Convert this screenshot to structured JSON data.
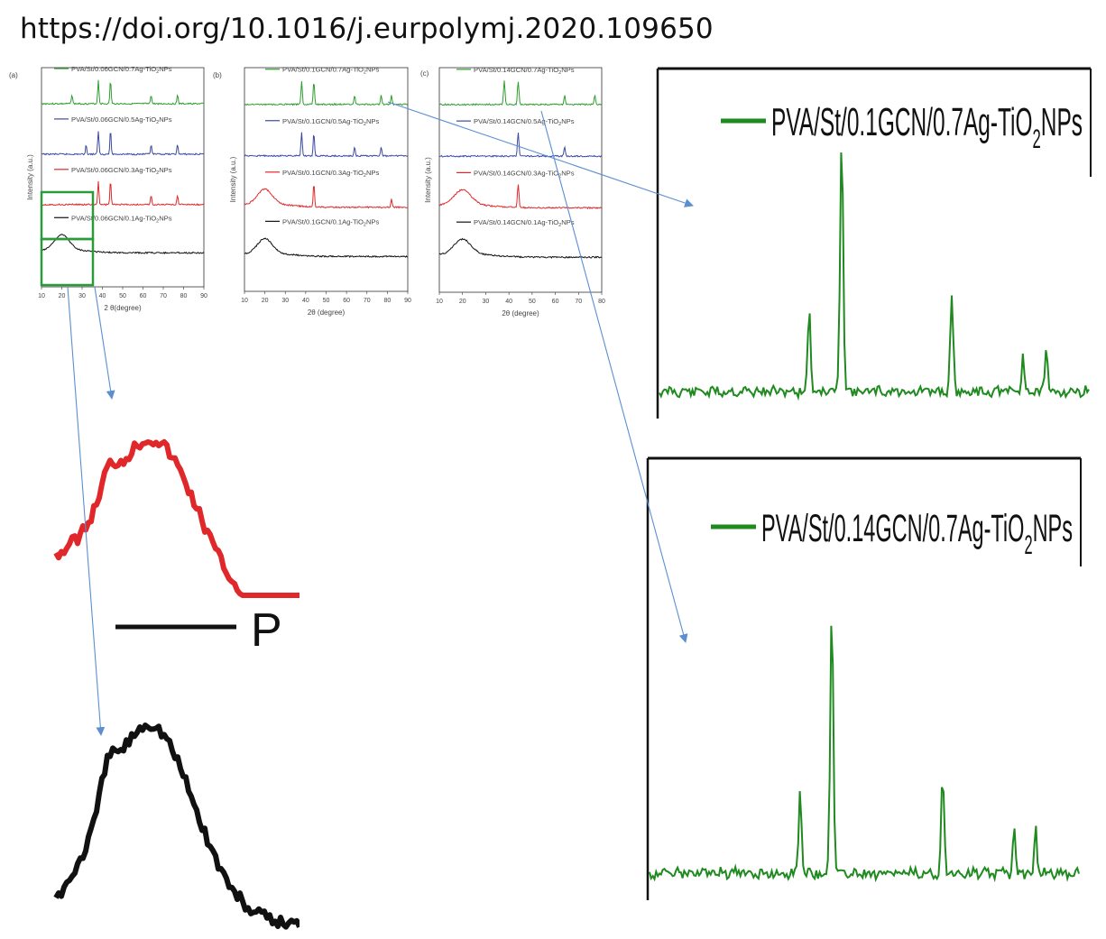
{
  "header": {
    "doi": "https://doi.org/10.1016/j.eurpolymj.2020.109650"
  },
  "colors": {
    "green": "#2e9e2e",
    "blue": "#3b4aa0",
    "red": "#e0282a",
    "black": "#111111",
    "zoom_green": "#1f8a1f",
    "arrow": "#5b8fd0",
    "box": "#2a9a3a"
  },
  "chart_data": [
    {
      "type": "line",
      "panel": "(a)",
      "xlabel": "2 θ(degree)",
      "ylabel": "Intensity (a.u.)",
      "xlim": [
        10,
        90
      ],
      "x_ticks": [
        "10",
        "20",
        "30",
        "40",
        "50",
        "60",
        "70",
        "80",
        "90"
      ],
      "series": [
        {
          "name": "PVA/St/0.06GCN/0.7Ag-TiO",
          "color": "#2e9e2e",
          "peaks": [
            25,
            38,
            44,
            64,
            77
          ]
        },
        {
          "name": "PVA/St/0.06GCN/0.5Ag-TiO",
          "color": "#3b4aa0",
          "peaks": [
            32,
            38,
            44,
            64,
            77
          ]
        },
        {
          "name": "PVA/St/0.06GCN/0.3Ag-TiO",
          "color": "#e0282a",
          "peaks": [
            20,
            38,
            44,
            64,
            77
          ]
        },
        {
          "name": "PVA/St/0.06GCN/0.1Ag-TiO",
          "color": "#111111",
          "peaks": [
            20
          ]
        }
      ]
    },
    {
      "type": "line",
      "panel": "(b)",
      "xlabel": "2θ (degree)",
      "ylabel": "Intensity (a.u.)",
      "xlim": [
        10,
        90
      ],
      "x_ticks": [
        "10",
        "20",
        "30",
        "40",
        "50",
        "60",
        "70",
        "80",
        "90"
      ],
      "series": [
        {
          "name": "PVA/St/0.1GCN/0.7Ag-TiO",
          "color": "#2e9e2e",
          "peaks": [
            38,
            44,
            64,
            77,
            82
          ]
        },
        {
          "name": "PVA/St/0.1GCN/0.5Ag-TiO",
          "color": "#3b4aa0",
          "peaks": [
            38,
            44,
            64,
            77
          ]
        },
        {
          "name": "PVA/St/0.1GCN/0.3Ag-TiO",
          "color": "#e0282a",
          "peaks": [
            20,
            44,
            82
          ]
        },
        {
          "name": "PVA/St/0.1GCN/0.1Ag-TiO",
          "color": "#111111",
          "peaks": [
            20
          ]
        }
      ]
    },
    {
      "type": "line",
      "panel": "(c)",
      "xlabel": "2θ (degree)",
      "ylabel": "Intensity (a.u.)",
      "xlim": [
        10,
        80
      ],
      "x_ticks": [
        "10",
        "20",
        "30",
        "40",
        "50",
        "60",
        "70",
        "80"
      ],
      "series": [
        {
          "name": "PVA/St/0.14GCN/0.7Ag-TiO",
          "color": "#2e9e2e",
          "peaks": [
            38,
            44,
            64,
            77
          ]
        },
        {
          "name": "PVA/St/0.14GCN/0.5Ag-TiO",
          "color": "#3b4aa0",
          "peaks": [
            44,
            64
          ]
        },
        {
          "name": "PVA/St/0.14GCN/0.3Ag-TiO",
          "color": "#e0282a",
          "peaks": [
            20,
            44
          ]
        },
        {
          "name": "PVA/St/0.14GCN/0.1Ag-TiO",
          "color": "#111111",
          "peaks": [
            20
          ]
        }
      ]
    }
  ],
  "legend_suffix": {
    "sub": "2",
    "tail": "NPs"
  },
  "zooms": {
    "top_right_label": "PVA/St/0.1GCN/0.7Ag-TiO",
    "bottom_right_label": "PVA/St/0.14GCN/0.7Ag-TiO",
    "left_fragment_text": "P"
  }
}
